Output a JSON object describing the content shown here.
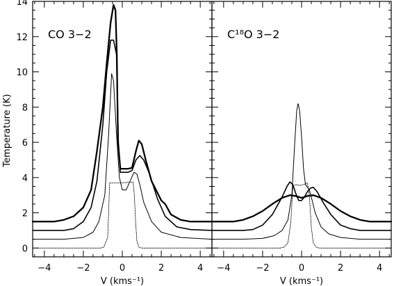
{
  "chart_data": [
    {
      "type": "line",
      "panel_label": "CO 3−2",
      "xlabel": "V (kms⁻¹)",
      "ylabel": "Temperature (K)",
      "xlim": [
        -4.6,
        4.6
      ],
      "ylim": [
        -0.5,
        14
      ],
      "xticks": [
        -4,
        -2,
        0,
        2,
        4
      ],
      "yticks": [
        0,
        2,
        4,
        6,
        8,
        10,
        12,
        14
      ],
      "grid": false,
      "series": [
        {
          "line_weight": "thin-dotted",
          "x": [
            -4.6,
            -1.1,
            -0.95,
            -0.75,
            -0.65,
            0.0,
            0.55,
            0.62,
            0.68,
            0.75,
            0.85,
            1.0,
            4.6
          ],
          "y": [
            0.0,
            0.0,
            0.05,
            0.6,
            3.7,
            3.7,
            3.75,
            3.0,
            1.5,
            0.4,
            0.05,
            0.0,
            0.0
          ]
        },
        {
          "line_weight": "thin",
          "x": [
            -4.6,
            -3.0,
            -2.0,
            -1.5,
            -1.2,
            -0.9,
            -0.7,
            -0.55,
            -0.45,
            -0.3,
            -0.15,
            0.0,
            0.2,
            0.4,
            0.6,
            0.75,
            0.9,
            1.1,
            1.5,
            2.0,
            3.0,
            4.6
          ],
          "y": [
            0.5,
            0.5,
            0.6,
            0.9,
            1.5,
            3.0,
            6.5,
            9.9,
            9.5,
            6.5,
            4.0,
            3.3,
            3.3,
            3.8,
            4.3,
            4.2,
            3.6,
            2.6,
            1.5,
            0.9,
            0.6,
            0.5
          ]
        },
        {
          "line_weight": "medium",
          "x": [
            -4.6,
            -3.0,
            -2.5,
            -2.0,
            -1.6,
            -1.3,
            -1.0,
            -0.8,
            -0.6,
            -0.45,
            -0.3,
            -0.2,
            -0.1,
            0.0,
            0.1,
            0.3,
            0.5,
            0.7,
            0.9,
            1.1,
            1.4,
            1.8,
            2.2,
            2.8,
            3.5,
            4.6
          ],
          "y": [
            1.0,
            1.0,
            1.1,
            1.5,
            2.3,
            3.8,
            7.0,
            10.0,
            11.8,
            11.8,
            11.0,
            6.0,
            4.3,
            4.3,
            4.3,
            4.3,
            4.4,
            5.0,
            5.25,
            5.0,
            4.2,
            2.8,
            1.8,
            1.2,
            1.05,
            1.0
          ]
        },
        {
          "line_weight": "thick",
          "x": [
            -4.6,
            -3.5,
            -3.0,
            -2.5,
            -2.0,
            -1.6,
            -1.3,
            -1.0,
            -0.8,
            -0.6,
            -0.45,
            -0.35,
            -0.28,
            -0.22,
            -0.1,
            0.0,
            0.1,
            0.3,
            0.5,
            0.7,
            0.85,
            1.0,
            1.2,
            1.5,
            2.0,
            2.2,
            2.5,
            3.0,
            3.5,
            4.6
          ],
          "y": [
            1.5,
            1.5,
            1.6,
            1.8,
            2.3,
            3.3,
            5.5,
            8.0,
            10.5,
            12.8,
            13.8,
            13.5,
            11.0,
            6.0,
            4.5,
            4.5,
            4.5,
            4.5,
            4.55,
            5.5,
            6.1,
            5.9,
            5.0,
            3.8,
            2.7,
            2.5,
            1.9,
            1.6,
            1.5,
            1.5
          ]
        }
      ]
    },
    {
      "type": "line",
      "panel_label": "C¹⁸O 3−2",
      "xlabel": "V (kms⁻¹)",
      "ylabel": "",
      "xlim": [
        -4.6,
        4.6
      ],
      "ylim": [
        -0.5,
        14
      ],
      "xticks": [
        -4,
        -2,
        0,
        2,
        4
      ],
      "yticks": [],
      "grid": false,
      "series": [
        {
          "line_weight": "thin-dotted",
          "x": [
            -4.6,
            -1.1,
            -0.9,
            -0.7,
            -0.55,
            -0.45,
            -0.3,
            -0.1,
            0.1,
            0.3,
            0.4,
            0.5,
            0.6,
            0.75,
            0.9,
            4.6
          ],
          "y": [
            0.0,
            0.0,
            0.05,
            0.3,
            1.5,
            3.5,
            3.6,
            3.55,
            3.6,
            3.7,
            3.0,
            1.2,
            0.3,
            0.05,
            0.0,
            0.0
          ]
        },
        {
          "line_weight": "thin",
          "x": [
            -4.6,
            -3.0,
            -2.0,
            -1.4,
            -1.0,
            -0.7,
            -0.5,
            -0.35,
            -0.25,
            -0.18,
            -0.1,
            0.0,
            0.1,
            0.2,
            0.3,
            0.4,
            0.5,
            0.7,
            1.0,
            1.4,
            2.0,
            3.0,
            4.6
          ],
          "y": [
            0.5,
            0.5,
            0.55,
            0.7,
            1.0,
            1.6,
            3.0,
            6.0,
            7.8,
            8.2,
            7.8,
            6.3,
            4.5,
            3.6,
            3.45,
            3.3,
            2.9,
            2.0,
            1.2,
            0.8,
            0.6,
            0.5,
            0.5
          ]
        },
        {
          "line_weight": "medium",
          "x": [
            -4.6,
            -3.0,
            -2.5,
            -2.0,
            -1.5,
            -1.0,
            -0.75,
            -0.6,
            -0.45,
            -0.3,
            -0.15,
            0.0,
            0.15,
            0.3,
            0.45,
            0.6,
            0.8,
            1.1,
            1.5,
            2.0,
            2.5,
            3.0,
            4.6
          ],
          "y": [
            1.0,
            1.0,
            1.05,
            1.3,
            1.9,
            2.9,
            3.5,
            3.75,
            3.6,
            3.1,
            2.7,
            2.7,
            2.9,
            3.2,
            3.4,
            3.45,
            3.2,
            2.6,
            1.9,
            1.3,
            1.1,
            1.0,
            1.0
          ]
        },
        {
          "line_weight": "thick",
          "x": [
            -4.6,
            -3.5,
            -3.0,
            -2.5,
            -2.0,
            -1.5,
            -1.0,
            -0.6,
            -0.3,
            0.0,
            0.3,
            0.6,
            1.0,
            1.5,
            2.0,
            2.5,
            3.0,
            3.5,
            4.6
          ],
          "y": [
            1.5,
            1.5,
            1.6,
            1.8,
            2.1,
            2.5,
            2.85,
            3.0,
            2.95,
            2.85,
            2.95,
            3.0,
            2.85,
            2.5,
            2.1,
            1.8,
            1.6,
            1.5,
            1.5
          ]
        }
      ]
    }
  ]
}
